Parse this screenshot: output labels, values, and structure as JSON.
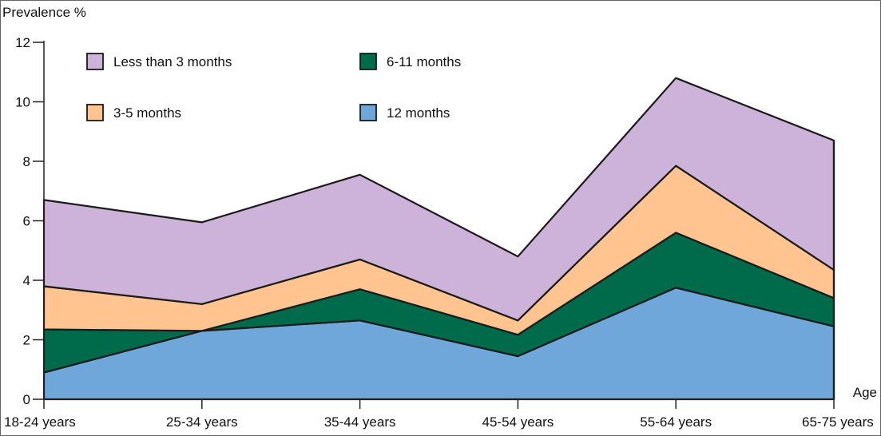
{
  "chart_data": {
    "type": "area",
    "stacked": true,
    "ylabel": "Prevalence %",
    "xlabel": "Age",
    "x_unit": "years",
    "categories": [
      "18-24",
      "25-34",
      "35-44",
      "45-54",
      "55-64",
      "65-75"
    ],
    "ylim": [
      0,
      12
    ],
    "yticks": [
      0,
      2,
      4,
      6,
      8,
      10,
      12
    ],
    "grid": false,
    "legend_position": "top-left",
    "series": [
      {
        "name": "12 months",
        "color": "#6fa7da",
        "values": [
          0.9,
          2.3,
          2.65,
          1.45,
          3.75,
          2.45
        ]
      },
      {
        "name": "6-11 months",
        "color": "#006b4a",
        "values": [
          1.45,
          0.0,
          1.05,
          0.72,
          1.85,
          0.95
        ]
      },
      {
        "name": "3-5 months",
        "color": "#ffc490",
        "values": [
          1.45,
          0.9,
          1.0,
          0.48,
          2.25,
          0.95
        ]
      },
      {
        "name": "Less than 3 months",
        "color": "#cdb3d9",
        "values": [
          2.9,
          2.75,
          2.85,
          2.15,
          2.95,
          4.35
        ]
      }
    ],
    "legend_order": [
      "Less than 3 months",
      "6-11 months",
      "3-5 months",
      "12 months"
    ]
  }
}
